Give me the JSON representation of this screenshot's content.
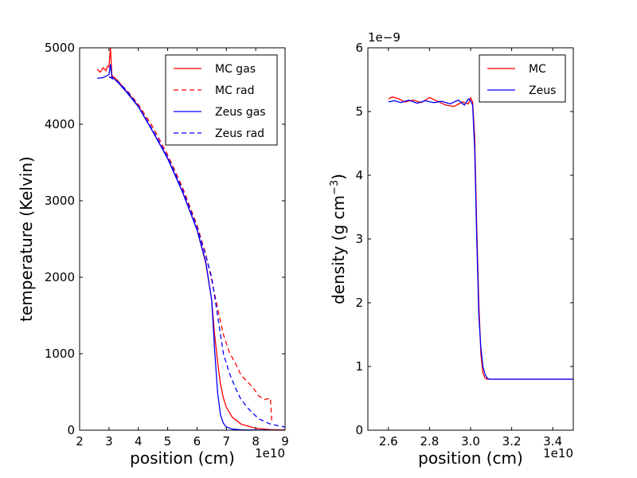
{
  "chart_data": [
    {
      "type": "line",
      "xlabel": "position (cm)",
      "ylabel": "temperature (Kelvin)",
      "x_offset_label": "1e10",
      "xlim": [
        2,
        9
      ],
      "ylim": [
        0,
        5000
      ],
      "xticks": [
        "2",
        "3",
        "4",
        "5",
        "6",
        "7",
        "8",
        "9"
      ],
      "yticks": [
        "0",
        "1000",
        "2000",
        "3000",
        "4000",
        "5000"
      ],
      "legend_position": "top-right",
      "series": [
        {
          "name": "MC gas",
          "color": "#ff0000",
          "style": "solid",
          "x": [
            2.6,
            2.7,
            2.8,
            2.9,
            2.95,
            3.0,
            3.05,
            3.1,
            3.3,
            3.6,
            4.0,
            4.5,
            5.0,
            5.5,
            6.0,
            6.3,
            6.5,
            6.6,
            6.7,
            6.8,
            6.9,
            7.0,
            7.2,
            7.5,
            8.0,
            8.5,
            9.0
          ],
          "y": [
            4720,
            4680,
            4740,
            4700,
            4760,
            4750,
            5000,
            4640,
            4570,
            4430,
            4240,
            3900,
            3560,
            3120,
            2620,
            2180,
            1700,
            1250,
            900,
            600,
            420,
            300,
            170,
            80,
            25,
            8,
            3
          ]
        },
        {
          "name": "MC rad",
          "color": "#ff0000",
          "style": "dashed",
          "x": [
            3.0,
            3.1,
            3.3,
            3.6,
            4.0,
            4.5,
            5.0,
            5.5,
            6.0,
            6.3,
            6.5,
            6.7,
            6.9,
            7.1,
            7.3,
            7.5,
            7.7,
            7.9,
            8.1,
            8.3,
            8.5,
            8.52,
            8.55
          ],
          "y": [
            4620,
            4610,
            4550,
            4450,
            4260,
            3960,
            3600,
            3180,
            2680,
            2300,
            1960,
            1600,
            1250,
            1020,
            880,
            720,
            640,
            560,
            450,
            400,
            420,
            300,
            100
          ]
        },
        {
          "name": "Zeus gas",
          "color": "#0000ff",
          "style": "solid",
          "x": [
            2.6,
            2.8,
            3.0,
            3.05,
            3.1,
            3.3,
            3.6,
            4.0,
            4.5,
            5.0,
            5.5,
            6.0,
            6.3,
            6.5,
            6.6,
            6.7,
            6.8,
            6.9,
            7.0,
            7.2,
            7.5,
            8.0,
            9.0
          ],
          "y": [
            4600,
            4610,
            4650,
            4780,
            4620,
            4550,
            4420,
            4230,
            3900,
            3550,
            3120,
            2620,
            2200,
            1700,
            1050,
            500,
            200,
            90,
            40,
            15,
            5,
            2,
            0
          ]
        },
        {
          "name": "Zeus rad",
          "color": "#0000ff",
          "style": "dashed",
          "x": [
            3.0,
            3.3,
            3.6,
            4.0,
            4.5,
            5.0,
            5.5,
            6.0,
            6.3,
            6.5,
            6.7,
            6.9,
            7.1,
            7.3,
            7.5,
            7.8,
            8.1,
            8.5,
            9.0
          ],
          "y": [
            4620,
            4560,
            4440,
            4240,
            3920,
            3570,
            3150,
            2650,
            2280,
            2000,
            1500,
            1000,
            750,
            560,
            400,
            260,
            150,
            80,
            40
          ]
        }
      ]
    },
    {
      "type": "line",
      "xlabel": "position (cm)",
      "ylabel": "density (g cm",
      "ylabel_sup": "−3",
      "ylabel_close": ")",
      "x_offset_label": "1e10",
      "y_offset_label": "1e−9",
      "xlim": [
        2.5,
        3.5
      ],
      "ylim": [
        0,
        6
      ],
      "xticks": [
        "2.6",
        "2.8",
        "3.0",
        "3.2",
        "3.4"
      ],
      "yticks": [
        "0",
        "1",
        "2",
        "3",
        "4",
        "5",
        "6"
      ],
      "legend_position": "top-right",
      "series": [
        {
          "name": "MC",
          "color": "#ff0000",
          "style": "solid",
          "x": [
            2.6,
            2.62,
            2.65,
            2.68,
            2.72,
            2.76,
            2.8,
            2.84,
            2.88,
            2.92,
            2.96,
            2.99,
            3.0,
            3.01,
            3.02,
            3.03,
            3.04,
            3.05,
            3.06,
            3.07,
            3.08,
            3.1,
            3.2,
            3.3,
            3.4,
            3.5
          ],
          "y": [
            5.2,
            5.23,
            5.2,
            5.15,
            5.18,
            5.14,
            5.22,
            5.16,
            5.1,
            5.08,
            5.15,
            5.12,
            5.22,
            5.15,
            4.6,
            3.2,
            2.0,
            1.2,
            0.9,
            0.82,
            0.8,
            0.8,
            0.8,
            0.8,
            0.8,
            0.8
          ]
        },
        {
          "name": "Zeus",
          "color": "#0000ff",
          "style": "solid",
          "x": [
            2.6,
            2.63,
            2.66,
            2.7,
            2.74,
            2.78,
            2.82,
            2.86,
            2.9,
            2.94,
            2.97,
            2.99,
            3.0,
            3.01,
            3.02,
            3.03,
            3.04,
            3.05,
            3.06,
            3.07,
            3.08,
            3.09,
            3.1,
            3.2,
            3.3,
            3.4,
            3.5
          ],
          "y": [
            5.15,
            5.17,
            5.14,
            5.18,
            5.13,
            5.17,
            5.14,
            5.16,
            5.12,
            5.18,
            5.1,
            5.2,
            5.17,
            5.1,
            4.4,
            3.0,
            1.8,
            1.3,
            1.0,
            0.88,
            0.82,
            0.8,
            0.8,
            0.8,
            0.8,
            0.8,
            0.8
          ]
        }
      ]
    }
  ]
}
